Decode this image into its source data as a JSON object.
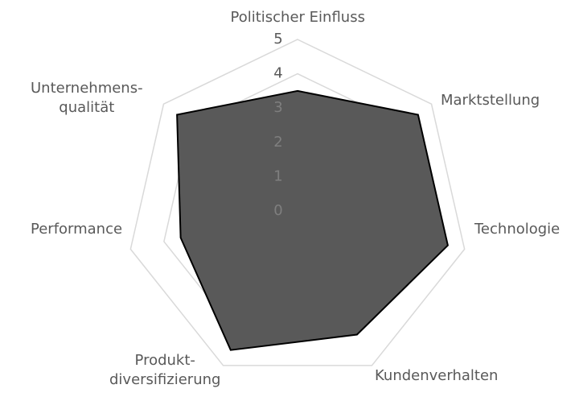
{
  "chart_data": {
    "type": "radar",
    "categories": [
      "Politischer Einfluss",
      "Marktstellung",
      "Technologie",
      "Kundenverhalten",
      "Produkt-\ndiversifizierung",
      "Performance",
      "Unternehmens-\nqualität"
    ],
    "values": [
      3.5,
      4.5,
      4.5,
      4.0,
      4.5,
      3.5,
      4.5
    ],
    "color": "#595959",
    "ylim": [
      0,
      5
    ],
    "yticks": [
      0,
      1,
      2,
      3,
      4,
      5
    ],
    "grid": true
  }
}
